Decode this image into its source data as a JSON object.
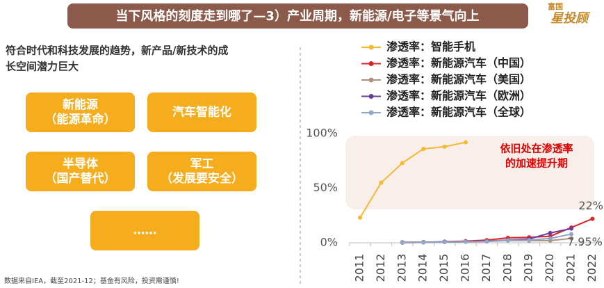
{
  "slide": {
    "title": "当下风格的刻度走到哪了—3）产业周期，新能源/电子等景气向上",
    "logo": [
      "富国",
      "星投顾"
    ],
    "intro": [
      "符合时代和科技发展的趋势，新产品/新技术的成",
      "长空间潜力巨大"
    ],
    "boxes": [
      [
        "新能源",
        "（能源革命）"
      ],
      [
        "汽车智能化"
      ],
      [
        "半导体",
        "（国产替代）"
      ],
      [
        "军工",
        "（发展要安全）"
      ],
      [
        "……"
      ]
    ],
    "footnote": "数据来自IEA，截至2021-12；基金有风险，投资需谨慎!"
  },
  "chart_data": {
    "type": "line",
    "categories": [
      "2011",
      "2012",
      "2013",
      "2014",
      "2015",
      "2016",
      "2017",
      "2018",
      "2019",
      "2020",
      "2021",
      "2022"
    ],
    "series": [
      {
        "name": "渗透率：智能手机",
        "color": "#f5b82e",
        "values": [
          23,
          55,
          73,
          86,
          88,
          92,
          null,
          null,
          null,
          null,
          null,
          null
        ]
      },
      {
        "name": "渗透率：新能源汽车（中国）",
        "color": "#d9252a",
        "values": [
          null,
          null,
          0.1,
          0.3,
          1,
          1.5,
          2.5,
          4.5,
          5,
          6,
          14,
          22
        ],
        "value_labels": [
          null,
          null,
          null,
          null,
          null,
          null,
          null,
          null,
          null,
          null,
          null,
          "22%"
        ]
      },
      {
        "name": "渗透率：新能源汽车（美国）",
        "color": "#b0907c",
        "values": [
          null,
          null,
          0.6,
          0.7,
          0.7,
          0.9,
          1.2,
          2,
          2,
          2,
          4,
          null
        ]
      },
      {
        "name": "渗透率：新能源汽车（欧洲）",
        "color": "#6a3d9a",
        "values": [
          null,
          null,
          0.2,
          0.4,
          0.8,
          1,
          1.5,
          2.5,
          3.5,
          9,
          13,
          null
        ]
      },
      {
        "name": "渗透率：新能源汽车（全球）",
        "color": "#8fa8c8",
        "values": [
          null,
          null,
          0.2,
          0.3,
          0.6,
          0.9,
          1.3,
          2.2,
          2.5,
          4,
          7.95,
          null
        ],
        "value_labels": [
          null,
          null,
          null,
          null,
          null,
          null,
          null,
          null,
          null,
          null,
          "7.95%",
          null
        ]
      }
    ],
    "annotation": [
      "依旧处在渗透率",
      "的加速提升期"
    ],
    "ylim": [
      0,
      100
    ],
    "yticks": [
      {
        "value": 0,
        "label": "0%"
      },
      {
        "value": 50,
        "label": "50%"
      },
      {
        "value": 100,
        "label": "100%"
      }
    ],
    "grid": false,
    "legend": "top"
  }
}
